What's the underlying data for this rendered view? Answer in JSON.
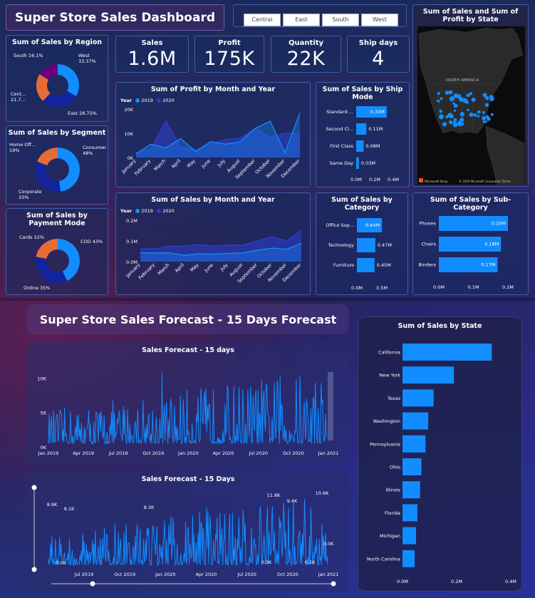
{
  "header": {
    "title": "Super Store Sales Dashboard"
  },
  "filters": {
    "regions": [
      "Central",
      "East",
      "South",
      "West"
    ]
  },
  "kpis": [
    {
      "label": "Sales",
      "value": "1.6M"
    },
    {
      "label": "Profit",
      "value": "175K"
    },
    {
      "label": "Quantity",
      "value": "22K"
    },
    {
      "label": "Ship days",
      "value": "4"
    }
  ],
  "map": {
    "title": "Sum of Sales and Sum of Profit by State",
    "region_label": "NORTH AMERICA",
    "credit": "Microsoft Bing",
    "copyright": "© 2024 Microsoft Corporation  Terms"
  },
  "forecast_section": {
    "title": "Super Store Sales Forecast - 15 Days Forecast"
  },
  "legend": {
    "title": "Year",
    "items": [
      "2019",
      "2020"
    ]
  },
  "colors": {
    "accent": "#118dff",
    "dark_blue": "#12239e",
    "orange": "#e66c37",
    "purple": "#6b007b",
    "series_2020": "#2b3fcf"
  },
  "chart_data": [
    {
      "id": "region",
      "type": "pie",
      "title": "Sum of Sales by Region",
      "categories": [
        "West",
        "East",
        "Central",
        "South"
      ],
      "values": [
        33.37,
        28.75,
        21.7,
        16.1
      ],
      "labels": [
        "West\n33.37%",
        "East 28.75%",
        "Cent...\n21.7...",
        "South 16.1%"
      ]
    },
    {
      "id": "segment",
      "type": "pie",
      "title": "Sum of Sales by Segment",
      "categories": [
        "Consumer",
        "Corporate",
        "Home Office"
      ],
      "values": [
        48,
        33,
        19
      ],
      "labels": [
        "Consumer\n48%",
        "Corporate\n33%",
        "Home Off...\n19%"
      ]
    },
    {
      "id": "payment",
      "type": "pie",
      "title": "Sum of Sales by Payment Mode",
      "categories": [
        "COD",
        "Online",
        "Cards"
      ],
      "values": [
        43,
        35,
        22
      ],
      "labels": [
        "COD 43%",
        "Online 35%",
        "Cards 22%"
      ]
    },
    {
      "id": "profit_month",
      "type": "area",
      "title": "Sum of Profit by Month and Year",
      "categories": [
        "January",
        "February",
        "March",
        "April",
        "May",
        "June",
        "July",
        "August",
        "September",
        "October",
        "November",
        "December"
      ],
      "yticks": [
        "20K",
        "10K",
        "0K"
      ],
      "ylim": [
        0,
        20000
      ],
      "series": [
        {
          "name": "2019",
          "values": [
            1500,
            5500,
            4000,
            7800,
            2500,
            6500,
            5500,
            6500,
            12000,
            15000,
            2000,
            18500
          ]
        },
        {
          "name": "2020",
          "values": [
            2000,
            3500,
            15000,
            4500,
            3000,
            5500,
            7500,
            8000,
            12000,
            8500,
            10000,
            10000
          ]
        }
      ]
    },
    {
      "id": "sales_month",
      "type": "area",
      "title": "Sum of Sales by Month and Year",
      "categories": [
        "January",
        "February",
        "March",
        "April",
        "May",
        "June",
        "July",
        "August",
        "September",
        "October",
        "November",
        "December"
      ],
      "yticks": [
        "0.2M",
        "0.1M",
        "0.0M"
      ],
      "ylim": [
        0,
        200000
      ],
      "series": [
        {
          "name": "2019",
          "values": [
            42000,
            42000,
            42000,
            30000,
            38000,
            36000,
            40000,
            42000,
            55000,
            65000,
            60000,
            88000
          ]
        },
        {
          "name": "2020",
          "values": [
            62000,
            62000,
            75000,
            75000,
            82000,
            75000,
            80000,
            80000,
            100000,
            120000,
            100000,
            150000
          ]
        }
      ]
    },
    {
      "id": "shipmode",
      "type": "bar",
      "title": "Sum of Sales by Ship Mode",
      "categories": [
        "Standard ...",
        "Second Cl...",
        "First Class",
        "Same Day"
      ],
      "values": [
        0.33,
        0.11,
        0.08,
        0.03
      ],
      "value_labels": [
        "0.33M",
        "0.11M",
        "0.08M",
        "0.03M"
      ],
      "xticks": [
        "0.0M",
        "0.2M",
        "0.4M"
      ],
      "xlim": [
        0,
        0.4
      ]
    },
    {
      "id": "category",
      "type": "bar",
      "title": "Sum of Sales by Category",
      "categories": [
        "Office Sup...",
        "Technology",
        "Furniture"
      ],
      "values": [
        0.64,
        0.47,
        0.45
      ],
      "value_labels": [
        "0.64M",
        "0.47M",
        "0.45M"
      ],
      "xticks": [
        "0.0M",
        "0.5M"
      ],
      "xlim": [
        0,
        0.8
      ]
    },
    {
      "id": "subcategory",
      "type": "bar",
      "title": "Sum of Sales by Sub-Category",
      "categories": [
        "Phones",
        "Chairs",
        "Binders"
      ],
      "values": [
        0.2,
        0.18,
        0.17
      ],
      "value_labels": [
        "0.20M",
        "0.18M",
        "0.17M"
      ],
      "xticks": [
        "0.0M",
        "0.1M",
        "0.2M"
      ],
      "xlim": [
        0,
        0.2
      ]
    },
    {
      "id": "state",
      "type": "bar",
      "title": "Sum of Sales by State",
      "categories": [
        "California",
        "New York",
        "Texas",
        "Washington",
        "Pennsylvania",
        "Ohio",
        "Illinois",
        "Florida",
        "Michigan",
        "North Carolina"
      ],
      "values": [
        0.33,
        0.19,
        0.115,
        0.095,
        0.085,
        0.07,
        0.065,
        0.055,
        0.05,
        0.045
      ],
      "xticks": [
        "0.0M",
        "0.2M",
        "0.4M"
      ],
      "xlim": [
        0,
        0.4
      ]
    },
    {
      "id": "forecast1",
      "type": "line",
      "title": "Sales Forecast - 15 days",
      "xticks": [
        "Jan 2019",
        "Apr 2019",
        "Jul 2019",
        "Oct 2019",
        "Jan 2020",
        "Apr 2020",
        "Jul 2020",
        "Oct 2020",
        "Jan 2021"
      ],
      "yticks": [
        "10K",
        "5K",
        "0K"
      ],
      "ylim": [
        0,
        12000
      ]
    },
    {
      "id": "forecast2",
      "type": "line",
      "title": "Sales Forecast - 15 Days",
      "xticks": [
        "Jul 2019",
        "Oct 2019",
        "Jan 2020",
        "Apr 2020",
        "Jul 2020",
        "Oct 2020",
        "Jan 2021"
      ],
      "ylim": [
        0,
        12000
      ],
      "annotations": [
        "8.9K",
        "8.1K",
        "8.3K",
        "11.8K",
        "9.4K",
        "10.6K",
        "0.0K",
        "0.3K",
        "0.2K",
        "3.0K"
      ]
    }
  ]
}
